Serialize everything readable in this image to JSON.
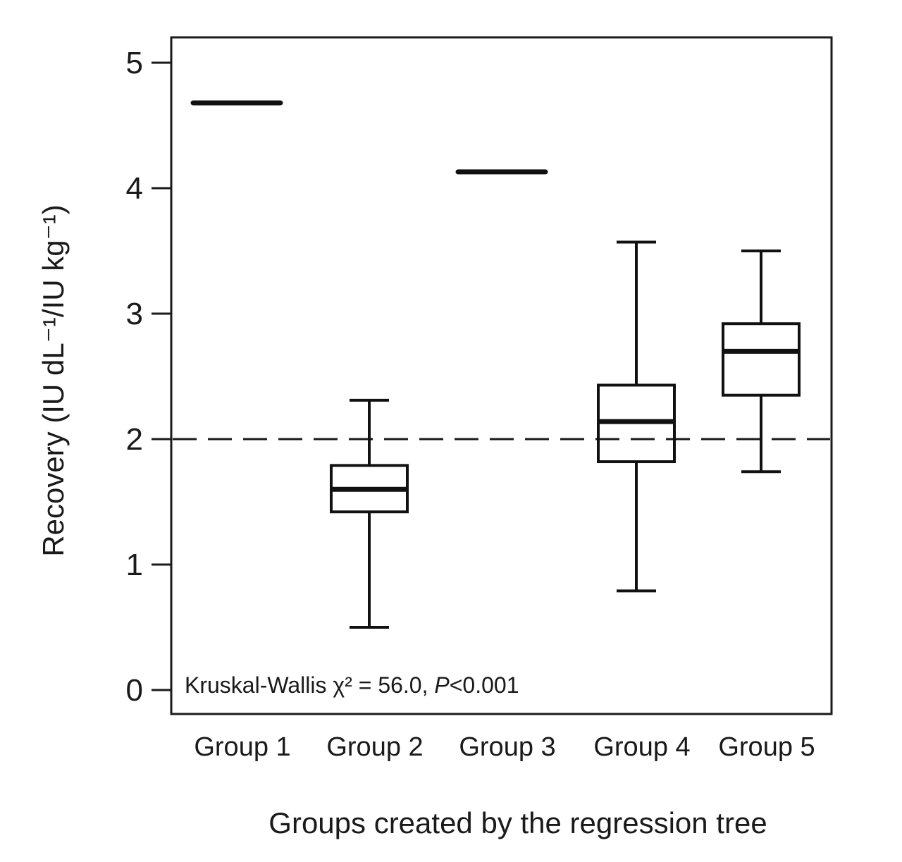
{
  "chart_data": {
    "type": "boxplot",
    "categories": [
      "Group 1",
      "Group 2",
      "Group 3",
      "Group 4",
      "Group 5"
    ],
    "boxes": [
      {
        "category": "Group 1",
        "min": 4.68,
        "q1": 4.68,
        "median": 4.68,
        "q3": 4.68,
        "max": 4.68
      },
      {
        "category": "Group 2",
        "min": 0.5,
        "q1": 1.42,
        "median": 1.6,
        "q3": 1.79,
        "max": 2.31
      },
      {
        "category": "Group 3",
        "min": 4.13,
        "q1": 4.13,
        "median": 4.13,
        "q3": 4.13,
        "max": 4.13
      },
      {
        "category": "Group 4",
        "min": 0.79,
        "q1": 1.82,
        "median": 2.14,
        "q3": 2.43,
        "max": 3.57
      },
      {
        "category": "Group 5",
        "min": 1.74,
        "q1": 2.35,
        "median": 2.7,
        "q3": 2.92,
        "max": 3.5
      }
    ],
    "reference_line": {
      "y": 2,
      "style": "dashed"
    },
    "ylim": [
      0,
      5
    ],
    "yticks": [
      0,
      1,
      2,
      3,
      4,
      5
    ],
    "ylabel": "Recovery (IU dL⁻¹/IU kg⁻¹)",
    "xlabel": "Groups created by the regression tree",
    "annotation": {
      "prefix": "Kruskal-Wallis χ² = 56.0, ",
      "p_symbol": "P",
      "p_value": "<0.001"
    },
    "grid": false,
    "legend": "none"
  }
}
